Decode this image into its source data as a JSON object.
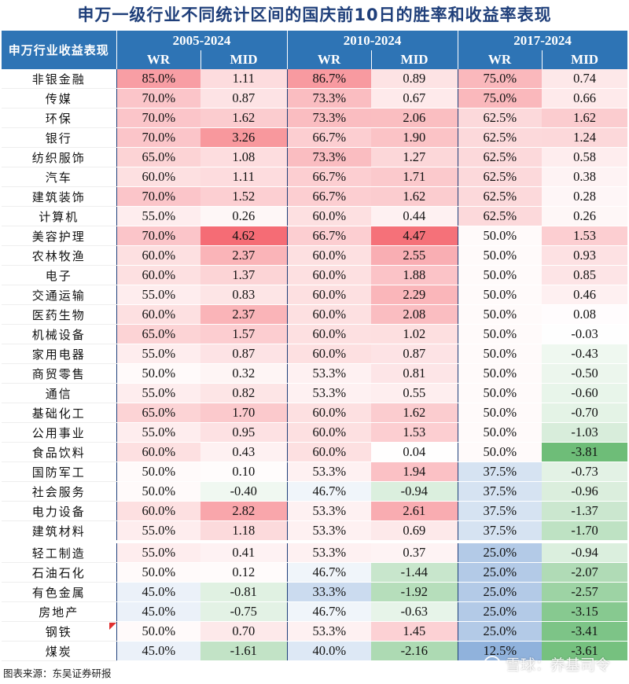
{
  "title": "申万一级行业不同统计区间的国庆前10日的胜率和收益率表现",
  "header": {
    "corner": "申万行业收益表现",
    "periods": [
      "2005-2024",
      "2010-2024",
      "2017-2024"
    ],
    "wr_label": "WR",
    "mid_label": "MID"
  },
  "rows": [
    {
      "name": "非银金融",
      "v": [
        "85.0%",
        "1.11",
        "86.7%",
        "0.89",
        "75.0%",
        "0.74"
      ]
    },
    {
      "name": "传媒",
      "v": [
        "70.0%",
        "0.87",
        "73.3%",
        "0.67",
        "75.0%",
        "0.66"
      ]
    },
    {
      "name": "环保",
      "v": [
        "70.0%",
        "1.62",
        "73.3%",
        "2.06",
        "62.5%",
        "1.62"
      ]
    },
    {
      "name": "银行",
      "v": [
        "70.0%",
        "3.26",
        "66.7%",
        "1.90",
        "62.5%",
        "1.24"
      ]
    },
    {
      "name": "纺织服饰",
      "v": [
        "65.0%",
        "1.08",
        "73.3%",
        "1.27",
        "62.5%",
        "0.58"
      ]
    },
    {
      "name": "汽车",
      "v": [
        "60.0%",
        "1.11",
        "66.7%",
        "1.71",
        "62.5%",
        "0.38"
      ]
    },
    {
      "name": "建筑装饰",
      "v": [
        "70.0%",
        "1.52",
        "66.7%",
        "1.62",
        "62.5%",
        "0.28"
      ]
    },
    {
      "name": "计算机",
      "v": [
        "55.0%",
        "0.26",
        "60.0%",
        "0.44",
        "62.5%",
        "0.26"
      ]
    },
    {
      "name": "美容护理",
      "v": [
        "70.0%",
        "4.62",
        "66.7%",
        "4.47",
        "50.0%",
        "1.53"
      ]
    },
    {
      "name": "农林牧渔",
      "v": [
        "60.0%",
        "2.37",
        "60.0%",
        "2.55",
        "50.0%",
        "0.93"
      ]
    },
    {
      "name": "电子",
      "v": [
        "60.0%",
        "1.37",
        "60.0%",
        "1.88",
        "50.0%",
        "0.85"
      ]
    },
    {
      "name": "交通运输",
      "v": [
        "55.0%",
        "0.83",
        "60.0%",
        "2.29",
        "50.0%",
        "0.46"
      ]
    },
    {
      "name": "医药生物",
      "v": [
        "60.0%",
        "2.37",
        "60.0%",
        "2.08",
        "50.0%",
        "0.08"
      ]
    },
    {
      "name": "机械设备",
      "v": [
        "65.0%",
        "1.57",
        "60.0%",
        "1.02",
        "50.0%",
        "-0.03"
      ]
    },
    {
      "name": "家用电器",
      "v": [
        "55.0%",
        "0.87",
        "60.0%",
        "0.87",
        "50.0%",
        "-0.43"
      ]
    },
    {
      "name": "商贸零售",
      "v": [
        "50.0%",
        "0.32",
        "53.3%",
        "0.81",
        "50.0%",
        "-0.50"
      ]
    },
    {
      "name": "通信",
      "v": [
        "55.0%",
        "0.82",
        "53.3%",
        "0.55",
        "50.0%",
        "-0.60"
      ]
    },
    {
      "name": "基础化工",
      "v": [
        "65.0%",
        "1.70",
        "60.0%",
        "1.62",
        "50.0%",
        "-0.70"
      ]
    },
    {
      "name": "公用事业",
      "v": [
        "55.0%",
        "0.95",
        "60.0%",
        "1.53",
        "50.0%",
        "-1.03"
      ]
    },
    {
      "name": "食品饮料",
      "v": [
        "60.0%",
        "0.43",
        "60.0%",
        "0.04",
        "50.0%",
        "-3.81"
      ]
    },
    {
      "name": "国防军工",
      "v": [
        "50.0%",
        "0.10",
        "53.3%",
        "1.94",
        "37.5%",
        "-0.73"
      ]
    },
    {
      "name": "社会服务",
      "v": [
        "50.0%",
        "-0.40",
        "46.7%",
        "-0.94",
        "37.5%",
        "-0.96"
      ]
    },
    {
      "name": "电力设备",
      "v": [
        "60.0%",
        "2.82",
        "53.3%",
        "2.61",
        "37.5%",
        "-1.37"
      ]
    },
    {
      "name": "建筑材料",
      "v": [
        "55.0%",
        "1.18",
        "53.3%",
        "0.69",
        "37.5%",
        "-1.70"
      ]
    },
    {
      "name": "轻工制造",
      "v": [
        "55.0%",
        "0.41",
        "53.3%",
        "0.37",
        "25.0%",
        "-0.94"
      ]
    },
    {
      "name": "石油石化",
      "v": [
        "50.0%",
        "0.12",
        "46.7%",
        "-1.44",
        "25.0%",
        "-2.07"
      ]
    },
    {
      "name": "有色金属",
      "v": [
        "45.0%",
        "-0.81",
        "33.3%",
        "-1.92",
        "25.0%",
        "-2.57"
      ]
    },
    {
      "name": "房地产",
      "v": [
        "45.0%",
        "-0.75",
        "46.7%",
        "-0.63",
        "25.0%",
        "-3.15"
      ]
    },
    {
      "name": "钢铁",
      "v": [
        "50.0%",
        "0.70",
        "53.3%",
        "1.45",
        "25.0%",
        "-3.41"
      ]
    },
    {
      "name": "煤炭",
      "v": [
        "45.0%",
        "-1.61",
        "40.0%",
        "-2.16",
        "12.5%",
        "-3.61"
      ]
    }
  ],
  "footer": "图表来源：东吴证券研报",
  "watermark": "雪球：养基司令",
  "colors": {
    "header_bg": "#2e74b5",
    "title": "#1f3f7a",
    "positive": "#f4626b",
    "negative": "#63b86e",
    "low_wr": "#8fb1dc",
    "neutral": "#ffffff"
  }
}
